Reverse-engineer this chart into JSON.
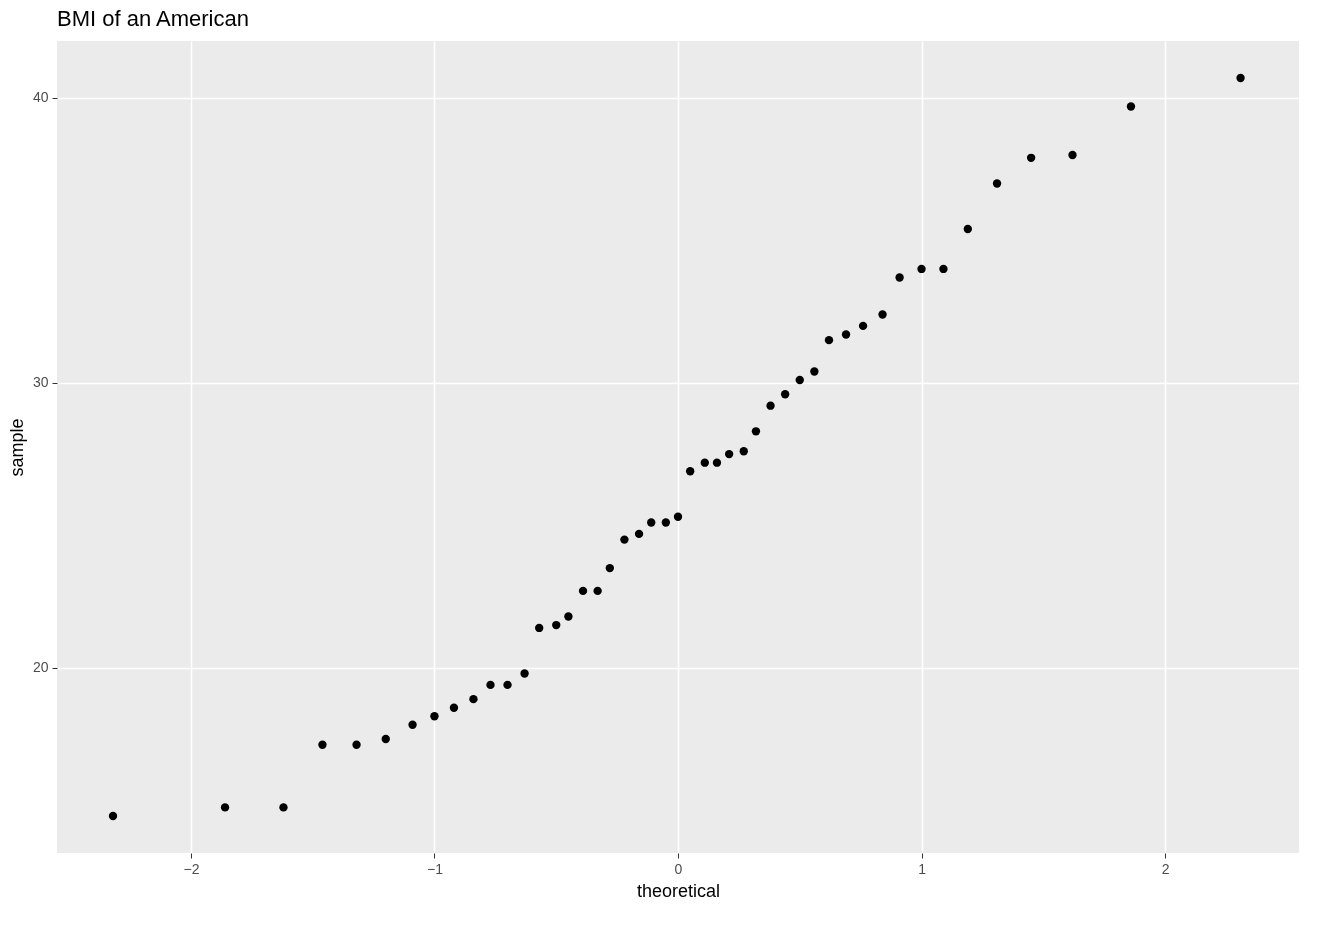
{
  "chart_data": {
    "type": "scatter",
    "title": "BMI of an American",
    "xlabel": "theoretical",
    "ylabel": "sample",
    "x": [
      -2.32,
      -1.86,
      -1.62,
      -1.46,
      -1.32,
      -1.2,
      -1.09,
      -1.0,
      -0.92,
      -0.84,
      -0.77,
      -0.7,
      -0.63,
      -0.57,
      -0.5,
      -0.45,
      -0.39,
      -0.33,
      -0.28,
      -0.22,
      -0.16,
      -0.11,
      -0.05,
      0,
      0.05,
      0.11,
      0.16,
      0.21,
      0.27,
      0.32,
      0.38,
      0.44,
      0.5,
      0.56,
      0.62,
      0.69,
      0.76,
      0.84,
      0.91,
      1.0,
      1.09,
      1.19,
      1.31,
      1.45,
      1.62,
      1.86,
      2.31
    ],
    "series": [
      {
        "color": "#000000",
        "values": [
          14.8,
          15.1,
          15.1,
          17.3,
          17.3,
          17.5,
          18.0,
          18.3,
          18.6,
          18.9,
          19.4,
          19.4,
          19.8,
          21.4,
          21.5,
          21.8,
          22.7,
          22.7,
          23.5,
          24.5,
          24.7,
          25.1,
          25.1,
          25.3,
          26.9,
          27.2,
          27.2,
          27.5,
          27.6,
          28.3,
          29.2,
          29.6,
          30.1,
          30.4,
          31.5,
          31.7,
          32.0,
          32.4,
          33.7,
          34.0,
          34.0,
          35.4,
          37.0,
          37.9,
          38.0,
          39.7,
          40.7
        ]
      }
    ],
    "xlim": [
      -2.55,
      2.55
    ],
    "ylim": [
      13.5,
      42
    ],
    "xticks": [
      -2,
      -1,
      0,
      1,
      2
    ],
    "yticks": [
      20,
      30,
      40
    ],
    "grid": true,
    "marker": "circle"
  }
}
